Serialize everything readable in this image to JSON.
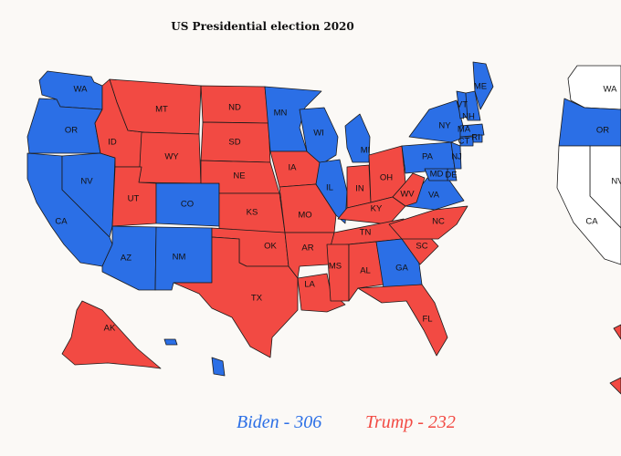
{
  "title": "US Presidential election 2020",
  "colors": {
    "biden": "#2b6fe6",
    "trump": "#f24a43",
    "neutral": "#ffffff"
  },
  "legend": {
    "biden": "Biden - 306",
    "trump": "Trump - 232"
  },
  "states": {
    "WA": "biden",
    "OR": "biden",
    "CA": "biden",
    "NV": "biden",
    "ID": "trump",
    "MT": "trump",
    "WY": "trump",
    "UT": "trump",
    "CO": "biden",
    "AZ": "biden",
    "NM": "biden",
    "ND": "trump",
    "SD": "trump",
    "NE": "trump",
    "KS": "trump",
    "OK": "trump",
    "TX": "trump",
    "MN": "biden",
    "IA": "trump",
    "MO": "trump",
    "AR": "trump",
    "LA": "trump",
    "WI": "biden",
    "IL": "biden",
    "MI": "biden",
    "IN": "trump",
    "OH": "trump",
    "KY": "trump",
    "TN": "trump",
    "MS": "trump",
    "AL": "trump",
    "GA": "biden",
    "FL": "trump",
    "SC": "trump",
    "NC": "trump",
    "VA": "biden",
    "WV": "trump",
    "PA": "biden",
    "NY": "biden",
    "VT": "biden",
    "NH": "biden",
    "ME": "biden",
    "MA": "biden",
    "RI": "biden",
    "CT": "biden",
    "NJ": "biden",
    "DE": "biden",
    "MD": "biden",
    "AK": "trump",
    "HI": "biden"
  },
  "second_map_labels": [
    "WA",
    "OR",
    "NV",
    "CA"
  ]
}
